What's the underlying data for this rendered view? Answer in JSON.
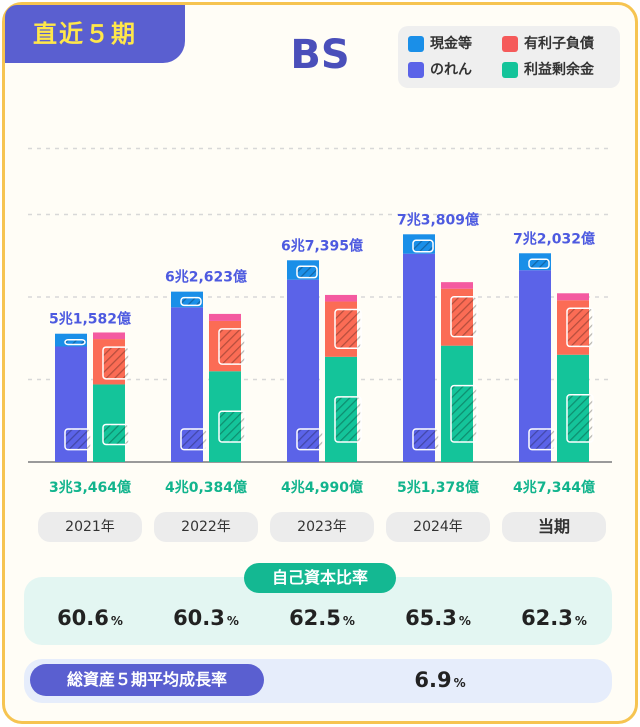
{
  "badge": "直近５期",
  "chart_data": {
    "type": "bar",
    "title": "BS",
    "categories": [
      "2021年",
      "2022年",
      "2023年",
      "2024年",
      "当期"
    ],
    "unit": "億円",
    "ylim": [
      0,
      80000
    ],
    "assets_stack": [
      {
        "name": "のれん",
        "color": "#5b63e8",
        "values": [
          28000,
          37500,
          44200,
          50500,
          46500
        ]
      },
      {
        "name": "現金等",
        "color": "#1a8fe8",
        "values": [
          3100,
          3800,
          4700,
          4700,
          4100
        ]
      }
    ],
    "liabilities_stack": [
      {
        "name": "利益剰余金",
        "color": "#14c49a",
        "values": [
          18800,
          22000,
          25500,
          28200,
          26000
        ]
      },
      {
        "name": "有利子負債",
        "color": "#fb6c55",
        "values": [
          11000,
          12200,
          13400,
          13800,
          13200
        ]
      },
      {
        "name": "",
        "color": "#f45aa0",
        "values": [
          1600,
          1700,
          1600,
          1600,
          1700
        ]
      }
    ],
    "top_labels": [
      "5兆1,582億",
      "6兆2,623億",
      "6兆7,395億",
      "7兆3,809億",
      "7兆2,032億"
    ],
    "bottom_labels": [
      "3兆3,464億",
      "4兆0,384億",
      "4兆4,990億",
      "5兆1,378億",
      "4兆7,344億"
    ]
  },
  "legend": [
    {
      "label": "現金等",
      "color": "#1a8fe8"
    },
    {
      "label": "有利子負債",
      "color": "#f55a5a"
    },
    {
      "label": "のれん",
      "color": "#5b63e8"
    },
    {
      "label": "利益剰余金",
      "color": "#14c49a"
    }
  ],
  "years": [
    "2021年",
    "2022年",
    "2023年",
    "2024年",
    "当期"
  ],
  "equity_ratio": {
    "title": "自己資本比率",
    "values": [
      "60.6",
      "60.3",
      "62.5",
      "65.3",
      "62.3"
    ],
    "unit": "%"
  },
  "growth": {
    "title": "総資産５期平均成長率",
    "value": "6.9",
    "unit": "%"
  }
}
